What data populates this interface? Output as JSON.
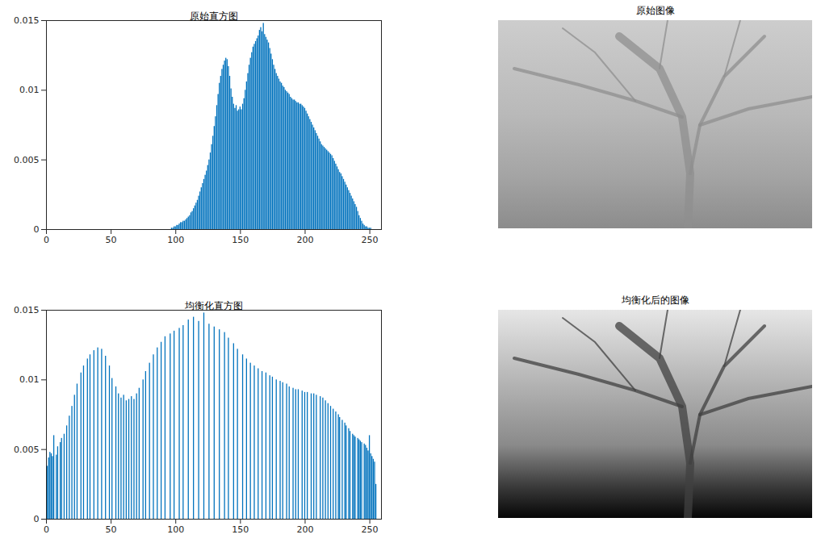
{
  "chart_data": [
    {
      "type": "bar",
      "title": "原始直方图",
      "color": "#0072bd",
      "grid": false,
      "xlim": [
        0,
        259
      ],
      "xticks": [
        0,
        50,
        100,
        150,
        200,
        250
      ],
      "ylim": [
        0,
        0.015
      ],
      "yticks": [
        0,
        0.005,
        0.01,
        0.015
      ],
      "x": [
        97,
        98,
        99,
        100,
        101,
        102,
        103,
        104,
        105,
        106,
        107,
        108,
        109,
        110,
        111,
        112,
        113,
        114,
        115,
        116,
        117,
        118,
        119,
        120,
        121,
        122,
        123,
        124,
        125,
        126,
        127,
        128,
        129,
        130,
        131,
        132,
        133,
        134,
        135,
        136,
        137,
        138,
        139,
        140,
        141,
        142,
        143,
        144,
        145,
        146,
        147,
        148,
        149,
        150,
        151,
        152,
        153,
        154,
        155,
        156,
        157,
        158,
        159,
        160,
        161,
        162,
        163,
        164,
        165,
        166,
        167,
        168,
        169,
        170,
        171,
        172,
        173,
        174,
        175,
        176,
        177,
        178,
        179,
        180,
        181,
        182,
        183,
        184,
        185,
        186,
        187,
        188,
        189,
        190,
        191,
        192,
        193,
        194,
        195,
        196,
        197,
        198,
        199,
        200,
        201,
        202,
        203,
        204,
        205,
        206,
        207,
        208,
        209,
        210,
        211,
        212,
        213,
        214,
        215,
        216,
        217,
        218,
        219,
        220,
        221,
        222,
        223,
        224,
        225,
        226,
        227,
        228,
        229,
        230,
        231,
        232,
        233,
        234,
        235,
        236,
        237,
        238,
        239,
        240,
        241,
        242,
        243,
        244,
        245,
        246,
        247,
        248,
        249,
        250,
        251
      ],
      "values": [
        0.0001,
        0.0001,
        0.0002,
        0.0002,
        0.0003,
        0.0003,
        0.0004,
        0.0005,
        0.0005,
        0.0006,
        0.0006,
        0.0007,
        0.0008,
        0.0009,
        0.001,
        0.0012,
        0.0013,
        0.0015,
        0.0017,
        0.0019,
        0.0021,
        0.0024,
        0.0027,
        0.003,
        0.0033,
        0.0036,
        0.0039,
        0.0042,
        0.0046,
        0.005,
        0.0055,
        0.0061,
        0.0067,
        0.0074,
        0.0081,
        0.0089,
        0.0097,
        0.0105,
        0.011,
        0.0115,
        0.0118,
        0.0121,
        0.0123,
        0.0122,
        0.0117,
        0.011,
        0.0101,
        0.0095,
        0.009,
        0.0087,
        0.0089,
        0.0085,
        0.0086,
        0.0088,
        0.0086,
        0.009,
        0.0094,
        0.01,
        0.0106,
        0.0112,
        0.0118,
        0.0123,
        0.0127,
        0.0131,
        0.0133,
        0.0135,
        0.0137,
        0.0139,
        0.0143,
        0.0145,
        0.0142,
        0.0148,
        0.014,
        0.0138,
        0.0136,
        0.0134,
        0.013,
        0.0126,
        0.0122,
        0.0118,
        0.0115,
        0.0112,
        0.011,
        0.0108,
        0.0106,
        0.0105,
        0.0103,
        0.0102,
        0.01,
        0.0099,
        0.0098,
        0.0097,
        0.0095,
        0.0094,
        0.0093,
        0.0093,
        0.0092,
        0.0091,
        0.0091,
        0.009,
        0.009,
        0.0089,
        0.0088,
        0.0087,
        0.0085,
        0.0083,
        0.0081,
        0.0079,
        0.0077,
        0.0075,
        0.0073,
        0.0071,
        0.0069,
        0.0067,
        0.0065,
        0.0063,
        0.0061,
        0.006,
        0.0059,
        0.0058,
        0.0057,
        0.0056,
        0.0055,
        0.0054,
        0.0053,
        0.0051,
        0.0049,
        0.0047,
        0.0045,
        0.0043,
        0.0041,
        0.004,
        0.0038,
        0.0036,
        0.0034,
        0.0032,
        0.003,
        0.0028,
        0.0026,
        0.0024,
        0.0022,
        0.002,
        0.0018,
        0.0016,
        0.0013,
        0.001,
        0.0008,
        0.0006,
        0.0004,
        0.0003,
        0.0002,
        0.0002,
        0.0001,
        0.0001,
        0.0001
      ]
    },
    {
      "type": "bar",
      "title": "均衡化直方图",
      "color": "#0072bd",
      "grid": false,
      "xlim": [
        0,
        259
      ],
      "xticks": [
        0,
        50,
        100,
        150,
        200,
        250
      ],
      "ylim": [
        0,
        0.015
      ],
      "yticks": [
        0,
        0.005,
        0.01,
        0.015
      ],
      "x": [
        0,
        1,
        2,
        3,
        4,
        5,
        6,
        8,
        9,
        11,
        12,
        14,
        16,
        18,
        20,
        22,
        24,
        27,
        29,
        32,
        34,
        37,
        40,
        43,
        46,
        49,
        51,
        54,
        56,
        58,
        60,
        62,
        64,
        66,
        68,
        70,
        72,
        75,
        77,
        80,
        83,
        86,
        89,
        92,
        96,
        99,
        103,
        106,
        110,
        114,
        118,
        122,
        126,
        130,
        134,
        138,
        141,
        145,
        148,
        152,
        155,
        158,
        161,
        164,
        167,
        170,
        173,
        175,
        178,
        181,
        183,
        186,
        188,
        191,
        193,
        195,
        198,
        200,
        202,
        205,
        207,
        209,
        212,
        214,
        216,
        218,
        220,
        222,
        224,
        226,
        227,
        229,
        231,
        232,
        234,
        235,
        237,
        238,
        239,
        241,
        242,
        243,
        244,
        246,
        247,
        248,
        249,
        250,
        251,
        252,
        253,
        254,
        255
      ],
      "values": [
        0.0039,
        0.0038,
        0.0044,
        0.0048,
        0.0047,
        0.0045,
        0.006,
        0.0046,
        0.0052,
        0.0055,
        0.0058,
        0.0061,
        0.0067,
        0.0074,
        0.0081,
        0.0089,
        0.0097,
        0.0105,
        0.011,
        0.0115,
        0.0118,
        0.0121,
        0.0123,
        0.0122,
        0.0117,
        0.011,
        0.0101,
        0.0095,
        0.009,
        0.0087,
        0.0089,
        0.0085,
        0.0086,
        0.0088,
        0.0086,
        0.009,
        0.0094,
        0.01,
        0.0106,
        0.0112,
        0.0118,
        0.0123,
        0.0127,
        0.0131,
        0.0133,
        0.0135,
        0.0137,
        0.0139,
        0.0143,
        0.0145,
        0.0142,
        0.0148,
        0.014,
        0.0138,
        0.0136,
        0.0134,
        0.013,
        0.0126,
        0.0122,
        0.0118,
        0.0115,
        0.0112,
        0.011,
        0.0108,
        0.0106,
        0.0105,
        0.0103,
        0.0102,
        0.01,
        0.0099,
        0.0098,
        0.0097,
        0.0095,
        0.0094,
        0.0093,
        0.0093,
        0.0092,
        0.0091,
        0.0091,
        0.009,
        0.009,
        0.0089,
        0.0088,
        0.0087,
        0.0085,
        0.0083,
        0.0081,
        0.0079,
        0.0077,
        0.0075,
        0.0073,
        0.0071,
        0.0069,
        0.0067,
        0.0065,
        0.0063,
        0.0061,
        0.006,
        0.0059,
        0.0058,
        0.0057,
        0.0056,
        0.0055,
        0.0054,
        0.0053,
        0.0051,
        0.0049,
        0.006,
        0.0047,
        0.0045,
        0.0043,
        0.0041,
        0.0025
      ]
    }
  ],
  "images": [
    {
      "title": "原始图像"
    },
    {
      "title": "均衡化后的图像"
    }
  ]
}
